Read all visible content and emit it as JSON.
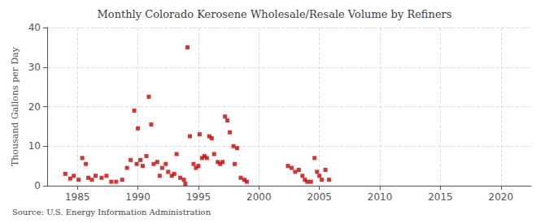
{
  "chart_data": {
    "type": "scatter",
    "title": "Monthly Colorado Kerosene Wholesale/Resale Volume by Refiners",
    "ylabel": "Thousand Gallons per Day",
    "annotations": [
      "Source: U.S. Energy Information Administration"
    ],
    "color": "#cc0000",
    "marker": "square",
    "grid": true,
    "xlim": [
      1982.5,
      2022.5
    ],
    "ylim": [
      0,
      40
    ],
    "xticks": [
      1985,
      1990,
      1995,
      2000,
      2005,
      2010,
      2015,
      2020
    ],
    "yticks": [
      0,
      10,
      20,
      30,
      40
    ],
    "x": [
      1984.0,
      1984.4,
      1984.7,
      1985.1,
      1985.4,
      1985.7,
      1985.9,
      1986.2,
      1986.5,
      1987.0,
      1987.4,
      1987.8,
      1988.2,
      1988.7,
      1989.1,
      1989.4,
      1989.7,
      1989.9,
      1990.0,
      1990.2,
      1990.4,
      1990.7,
      1990.9,
      1991.1,
      1991.3,
      1991.6,
      1991.8,
      1992.0,
      1992.3,
      1992.5,
      1992.8,
      1993.0,
      1993.2,
      1993.5,
      1993.8,
      1993.92,
      1994.1,
      1994.3,
      1994.6,
      1994.8,
      1995.0,
      1995.1,
      1995.3,
      1995.5,
      1995.7,
      1995.9,
      1996.1,
      1996.3,
      1996.6,
      1996.8,
      1997.0,
      1997.2,
      1997.4,
      1997.6,
      1997.9,
      1998.0,
      1998.2,
      1998.5,
      1998.8,
      1999.0,
      2002.4,
      2002.7,
      2003.0,
      2003.3,
      2003.6,
      2003.8,
      2004.0,
      2004.3,
      2004.6,
      2004.8,
      2005.0,
      2005.2,
      2005.5,
      2005.8
    ],
    "values": [
      3.0,
      1.8,
      2.5,
      1.5,
      7.0,
      5.5,
      2.0,
      1.5,
      2.5,
      2.0,
      2.5,
      1.0,
      1.0,
      1.5,
      4.5,
      6.5,
      19.0,
      5.5,
      14.5,
      6.5,
      5.0,
      7.5,
      22.5,
      15.5,
      5.5,
      6.0,
      2.5,
      4.5,
      5.5,
      3.5,
      2.5,
      3.0,
      8.0,
      2.0,
      1.5,
      0.5,
      35.0,
      12.5,
      5.5,
      4.5,
      5.0,
      13.0,
      7.0,
      7.5,
      7.0,
      12.5,
      12.0,
      8.0,
      6.0,
      5.5,
      6.0,
      17.5,
      16.5,
      13.5,
      10.0,
      5.5,
      9.5,
      2.0,
      1.5,
      1.0,
      5.0,
      4.5,
      3.5,
      4.0,
      2.5,
      1.5,
      1.0,
      1.0,
      7.0,
      3.5,
      2.5,
      1.5,
      4.0,
      1.5
    ]
  }
}
